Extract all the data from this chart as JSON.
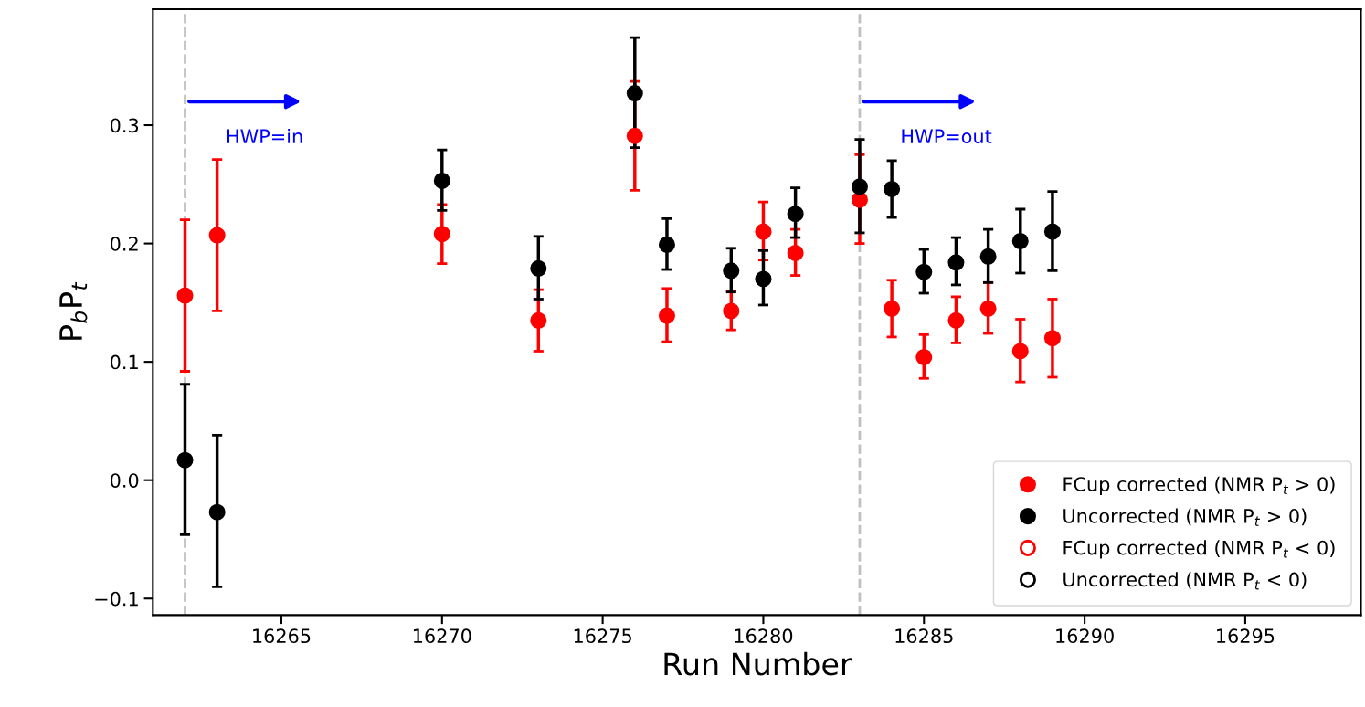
{
  "chart_data": {
    "type": "scatter",
    "xlabel": "Run Number",
    "ylabel": "P$_{b}$P$_{t}$",
    "xlim": [
      16261,
      16298.6
    ],
    "ylim": [
      -0.114,
      0.398
    ],
    "xticks": [
      16265,
      16270,
      16275,
      16280,
      16285,
      16290,
      16295
    ],
    "yticks": [
      {
        "value": -0.1,
        "label": "−0.1"
      },
      {
        "value": 0.0,
        "label": "0.0"
      },
      {
        "value": 0.1,
        "label": "0.1"
      },
      {
        "value": 0.2,
        "label": "0.2"
      },
      {
        "value": 0.3,
        "label": "0.3"
      }
    ],
    "grid": false,
    "legend": "bottom right",
    "marker": "circle",
    "ref_lines": [
      {
        "axis": "x",
        "value": 16262,
        "label": "HWP=in",
        "color": "#c0c0c0",
        "line_style": "dashed"
      },
      {
        "axis": "x",
        "value": 16283,
        "label": "HWP=out",
        "color": "#c0c0c0",
        "line_style": "dashed"
      }
    ],
    "series": [
      {
        "name": "FCup corrected (NMR P$_{t}$ > 0)",
        "color": "#ff0000",
        "x": [
          16262,
          16263,
          16270,
          16273,
          16276,
          16277,
          16279,
          16280,
          16281,
          16283,
          16284,
          16285,
          16286,
          16287,
          16288,
          16289
        ],
        "values": [
          0.156,
          0.207,
          0.208,
          0.135,
          0.291,
          0.139,
          0.143,
          0.21,
          0.192,
          0.237,
          0.145,
          0.104,
          0.135,
          0.145,
          0.109,
          0.12
        ],
        "errors": [
          [
            0.092,
            0.22
          ],
          [
            0.143,
            0.271
          ],
          [
            0.183,
            0.233
          ],
          [
            0.109,
            0.161
          ],
          [
            0.245,
            0.337
          ],
          [
            0.117,
            0.162
          ],
          [
            0.127,
            0.16
          ],
          [
            0.186,
            0.235
          ],
          [
            0.173,
            0.212
          ],
          [
            0.2,
            0.275
          ],
          [
            0.121,
            0.169
          ],
          [
            0.086,
            0.123
          ],
          [
            0.116,
            0.155
          ],
          [
            0.124,
            0.167
          ],
          [
            0.083,
            0.136
          ],
          [
            0.087,
            0.153
          ]
        ]
      },
      {
        "name": "Uncorrected (NMR P$_{t}$ > 0)",
        "color": "#000000",
        "x": [
          16262,
          16263,
          16270,
          16273,
          16276,
          16277,
          16279,
          16280,
          16281,
          16283,
          16284,
          16285,
          16286,
          16287,
          16288,
          16289
        ],
        "values": [
          0.017,
          -0.027,
          0.253,
          0.179,
          0.327,
          0.199,
          0.177,
          0.17,
          0.225,
          0.248,
          0.246,
          0.176,
          0.184,
          0.189,
          0.202,
          0.21
        ],
        "errors": [
          [
            -0.046,
            0.081
          ],
          [
            -0.09,
            0.038
          ],
          [
            0.228,
            0.279
          ],
          [
            0.153,
            0.206
          ],
          [
            0.281,
            0.374
          ],
          [
            0.178,
            0.221
          ],
          [
            0.159,
            0.196
          ],
          [
            0.148,
            0.194
          ],
          [
            0.205,
            0.247
          ],
          [
            0.209,
            0.288
          ],
          [
            0.222,
            0.27
          ],
          [
            0.158,
            0.195
          ],
          [
            0.165,
            0.205
          ],
          [
            0.167,
            0.212
          ],
          [
            0.175,
            0.229
          ],
          [
            0.177,
            0.244
          ]
        ]
      },
      {
        "name": "FCup corrected (NMR P$_{t}$ < 0)",
        "color": "#ff0000"
      },
      {
        "name": "Uncorrected (NMR P$_{t}$ < 0)",
        "color": "#000000"
      }
    ]
  }
}
